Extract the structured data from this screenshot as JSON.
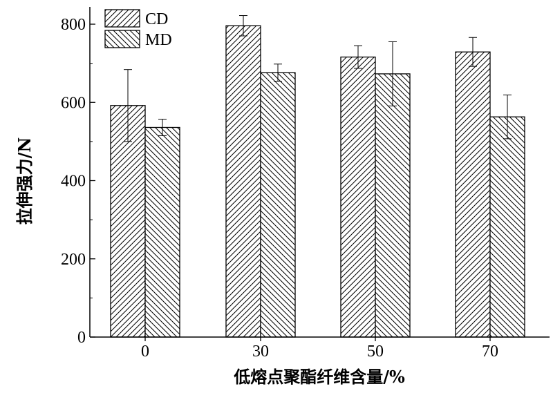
{
  "chart_data": {
    "type": "bar",
    "xlabel": "低熔点聚酯纤维含量/%",
    "ylabel": "拉伸强力/N",
    "categories": [
      "0",
      "30",
      "50",
      "70"
    ],
    "ylim": [
      0,
      800
    ],
    "yticks": [
      "0",
      "200",
      "400",
      "600",
      "800"
    ],
    "grid": false,
    "legend_position": "top-left",
    "series": [
      {
        "name": "CD",
        "hatch": "forward-diagonal",
        "values": [
          592,
          796,
          716,
          729
        ],
        "errors": [
          92,
          26,
          29,
          37
        ]
      },
      {
        "name": "MD",
        "hatch": "backward-diagonal",
        "values": [
          536,
          676,
          673,
          563
        ],
        "errors": [
          21,
          22,
          82,
          56
        ]
      }
    ],
    "colors": {
      "bar_fill": "#ffffff",
      "stroke": "#000000"
    }
  }
}
